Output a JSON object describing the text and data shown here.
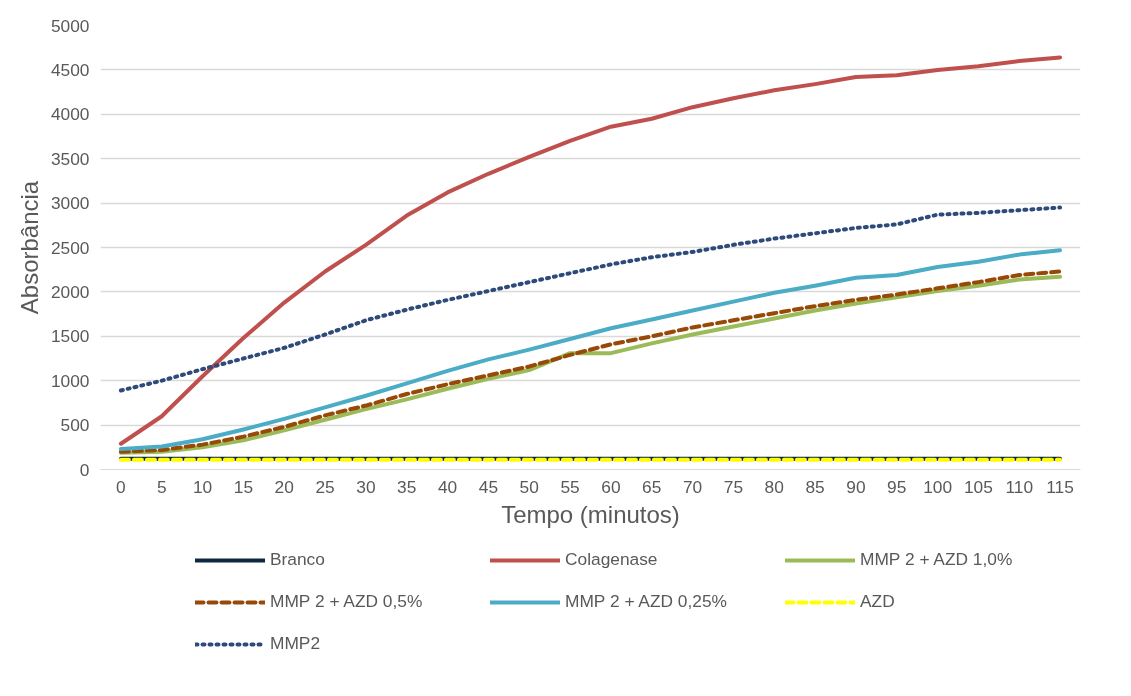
{
  "chart_data": {
    "type": "line",
    "xlabel": "Tempo (minutos)",
    "ylabel": "Absorbância",
    "categories": [
      "0",
      "5",
      "10",
      "15",
      "20",
      "25",
      "30",
      "35",
      "40",
      "45",
      "50",
      "55",
      "60",
      "65",
      "70",
      "75",
      "80",
      "85",
      "90",
      "95",
      "100",
      "105",
      "110",
      "115"
    ],
    "ylim": [
      0,
      5000
    ],
    "yticks": [
      0,
      500,
      1000,
      1500,
      2000,
      2500,
      3000,
      3500,
      4000,
      4500,
      5000
    ],
    "grid": "y",
    "legend": "bottom",
    "marker": "none",
    "series": [
      {
        "name": "Branco",
        "color": "#0e2841",
        "line_style": "solid",
        "values": [
          120,
          120,
          120,
          120,
          120,
          120,
          120,
          120,
          120,
          120,
          120,
          120,
          120,
          120,
          120,
          120,
          120,
          120,
          120,
          120,
          120,
          120,
          120,
          120
        ]
      },
      {
        "name": "Colagenase",
        "color": "#c0504d",
        "line_style": "solid",
        "values": [
          290,
          600,
          1050,
          1480,
          1880,
          2230,
          2530,
          2860,
          3120,
          3330,
          3520,
          3700,
          3860,
          3950,
          4080,
          4180,
          4270,
          4340,
          4420,
          4440,
          4500,
          4540,
          4600,
          4640
        ]
      },
      {
        "name": "MMP 2 + AZD 1,0%",
        "color": "#9bbb59",
        "line_style": "solid",
        "values": [
          190,
          200,
          250,
          330,
          440,
          560,
          680,
          790,
          910,
          1020,
          1120,
          1310,
          1310,
          1420,
          1520,
          1610,
          1700,
          1790,
          1870,
          1940,
          2010,
          2070,
          2140,
          2170
        ]
      },
      {
        "name": "MMP 2 + AZD 0,5%",
        "color": "#984807",
        "line_style": "dashed",
        "values": [
          200,
          220,
          280,
          370,
          480,
          610,
          720,
          850,
          960,
          1060,
          1160,
          1290,
          1410,
          1500,
          1600,
          1680,
          1760,
          1840,
          1910,
          1970,
          2040,
          2110,
          2190,
          2230
        ]
      },
      {
        "name": "MMP 2 + AZD 0,25%",
        "color": "#4bacc6",
        "line_style": "solid",
        "values": [
          230,
          260,
          340,
          450,
          570,
          700,
          830,
          970,
          1110,
          1240,
          1350,
          1470,
          1590,
          1690,
          1790,
          1890,
          1990,
          2070,
          2160,
          2190,
          2280,
          2340,
          2420,
          2470
        ]
      },
      {
        "name": "AZD",
        "color": "#ffff00",
        "line_style": "dashed",
        "values": [
          110,
          110,
          110,
          110,
          110,
          110,
          110,
          110,
          110,
          110,
          110,
          110,
          110,
          110,
          110,
          110,
          110,
          110,
          110,
          110,
          110,
          110,
          110,
          110
        ]
      },
      {
        "name": "MMP2",
        "color": "#2e4a7a",
        "line_style": "dotted",
        "values": [
          890,
          1000,
          1130,
          1250,
          1370,
          1520,
          1680,
          1800,
          1910,
          2010,
          2110,
          2210,
          2310,
          2390,
          2450,
          2530,
          2600,
          2660,
          2720,
          2760,
          2870,
          2890,
          2920,
          2950
        ]
      }
    ]
  }
}
